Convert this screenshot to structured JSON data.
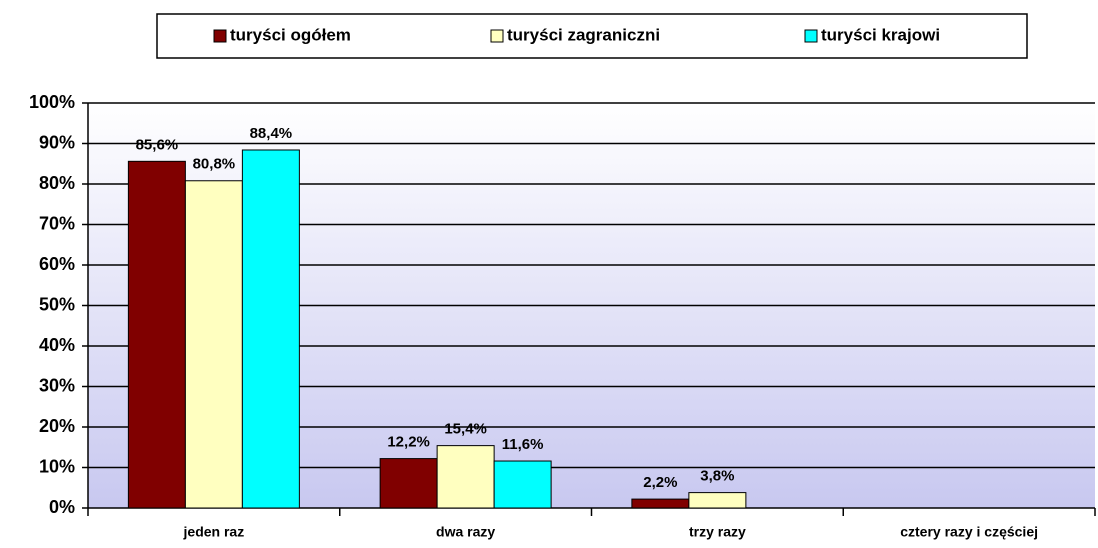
{
  "chart_data": {
    "type": "bar",
    "categories": [
      "jeden raz",
      "dwa razy",
      "trzy razy",
      "cztery razy i częściej"
    ],
    "series": [
      {
        "name": "turyści ogółem",
        "color": "#800000",
        "values": [
          85.6,
          12.2,
          2.2,
          null
        ],
        "value_labels": [
          "85,6%",
          "12,2%",
          "2,2%",
          null
        ]
      },
      {
        "name": "turyści zagraniczni",
        "color": "#ffffc0",
        "values": [
          80.8,
          15.4,
          3.8,
          null
        ],
        "value_labels": [
          "80,8%",
          "15,4%",
          "3,8%",
          null
        ]
      },
      {
        "name": "turyści krajowi",
        "color": "#00ffff",
        "values": [
          88.4,
          11.6,
          null,
          null
        ],
        "value_labels": [
          "88,4%",
          "11,6%",
          null,
          null
        ]
      }
    ],
    "ylim": [
      0,
      100
    ],
    "yticks": [
      {
        "value": 0,
        "label": "0%"
      },
      {
        "value": 10,
        "label": "10%"
      },
      {
        "value": 20,
        "label": "20%"
      },
      {
        "value": 30,
        "label": "30%"
      },
      {
        "value": 40,
        "label": "40%"
      },
      {
        "value": 50,
        "label": "50%"
      },
      {
        "value": 60,
        "label": "60%"
      },
      {
        "value": 70,
        "label": "70%"
      },
      {
        "value": 80,
        "label": "80%"
      },
      {
        "value": 90,
        "label": "90%"
      },
      {
        "value": 100,
        "label": "100%"
      }
    ],
    "grid": true,
    "legend": "top"
  }
}
